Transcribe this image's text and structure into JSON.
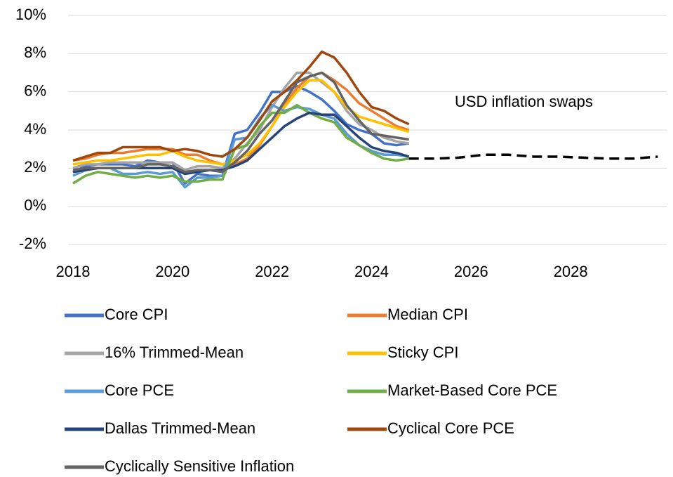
{
  "chart_data": {
    "type": "line",
    "x": [
      2018,
      2018.25,
      2018.5,
      2018.75,
      2019,
      2019.25,
      2019.5,
      2019.75,
      2020,
      2020.25,
      2020.5,
      2020.75,
      2021,
      2021.25,
      2021.5,
      2021.75,
      2022,
      2022.25,
      2022.5,
      2022.75,
      2023,
      2023.25,
      2023.5,
      2023.75,
      2024,
      2024.25,
      2024.5,
      2024.75
    ],
    "series": [
      {
        "name": "Core CPI",
        "color": "#4472c4",
        "values": [
          1.8,
          2.1,
          2.2,
          2.2,
          2.2,
          2.1,
          2.4,
          2.3,
          2.3,
          1.2,
          1.7,
          1.6,
          1.6,
          3.8,
          4.0,
          4.9,
          6.0,
          6.0,
          6.3,
          6.0,
          5.6,
          5.0,
          4.3,
          4.0,
          3.8,
          3.3,
          3.2,
          3.3
        ]
      },
      {
        "name": "Median CPI",
        "color": "#ed7d31",
        "values": [
          2.4,
          2.5,
          2.7,
          2.8,
          2.8,
          2.9,
          3.0,
          3.0,
          3.0,
          2.7,
          2.7,
          2.4,
          2.2,
          2.2,
          2.5,
          3.2,
          4.2,
          5.3,
          6.2,
          6.8,
          7.0,
          6.6,
          6.1,
          5.4,
          5.0,
          4.6,
          4.2,
          4.0
        ]
      },
      {
        "name": "16% Trimmed-Mean",
        "color": "#a5a5a5",
        "values": [
          2.0,
          2.2,
          2.2,
          2.3,
          2.3,
          2.3,
          2.3,
          2.3,
          2.3,
          1.9,
          2.1,
          2.1,
          2.0,
          2.5,
          3.3,
          4.0,
          5.2,
          6.2,
          7.0,
          7.0,
          6.5,
          6.0,
          5.0,
          4.3,
          4.0,
          3.6,
          3.4,
          3.3
        ]
      },
      {
        "name": "Sticky CPI",
        "color": "#ffc000",
        "values": [
          2.2,
          2.3,
          2.4,
          2.4,
          2.5,
          2.6,
          2.7,
          2.7,
          2.9,
          2.6,
          2.4,
          2.3,
          2.2,
          2.4,
          2.7,
          3.3,
          4.2,
          5.2,
          6.0,
          6.6,
          6.6,
          6.0,
          5.2,
          4.7,
          4.5,
          4.3,
          4.1,
          3.9
        ]
      },
      {
        "name": "Core PCE",
        "color": "#5b9bd5",
        "values": [
          1.6,
          1.9,
          2.0,
          2.0,
          1.7,
          1.7,
          1.8,
          1.7,
          1.8,
          1.0,
          1.5,
          1.5,
          1.6,
          3.5,
          3.6,
          4.6,
          5.3,
          5.0,
          5.2,
          5.1,
          4.8,
          4.6,
          3.8,
          3.2,
          2.9,
          2.7,
          2.7,
          2.6
        ]
      },
      {
        "name": "Market-Based Core PCE",
        "color": "#70ad47",
        "values": [
          1.2,
          1.6,
          1.8,
          1.7,
          1.6,
          1.5,
          1.6,
          1.5,
          1.6,
          1.3,
          1.3,
          1.4,
          1.4,
          3.0,
          3.2,
          4.2,
          4.9,
          4.9,
          5.3,
          4.9,
          4.6,
          4.4,
          3.6,
          3.2,
          2.8,
          2.5,
          2.4,
          2.5
        ]
      },
      {
        "name": "Dallas Trimmed-Mean",
        "color": "#264478",
        "values": [
          1.8,
          1.9,
          2.0,
          2.0,
          2.0,
          2.0,
          2.0,
          2.0,
          2.0,
          1.7,
          1.8,
          1.9,
          1.9,
          2.1,
          2.4,
          3.0,
          3.6,
          4.2,
          4.6,
          4.9,
          4.8,
          4.8,
          4.2,
          3.6,
          3.1,
          2.9,
          2.8,
          2.6
        ]
      },
      {
        "name": "Cyclical Core PCE",
        "color": "#9e480e",
        "values": [
          2.4,
          2.6,
          2.8,
          2.8,
          3.1,
          3.1,
          3.1,
          3.1,
          2.9,
          3.0,
          2.9,
          2.7,
          2.6,
          3.0,
          3.6,
          4.5,
          5.5,
          6.0,
          6.6,
          7.3,
          8.1,
          7.8,
          7.0,
          6.0,
          5.2,
          5.0,
          4.6,
          4.3
        ]
      },
      {
        "name": "Cyclically Sensitive Inflation",
        "color": "#636363",
        "values": [
          1.9,
          2.0,
          2.0,
          2.0,
          2.0,
          2.0,
          2.2,
          2.2,
          2.1,
          1.8,
          1.9,
          1.9,
          1.8,
          2.3,
          2.9,
          3.8,
          4.5,
          5.5,
          6.5,
          6.8,
          7.0,
          6.5,
          5.3,
          4.5,
          3.8,
          3.7,
          3.6,
          3.5
        ]
      }
    ],
    "swaps": {
      "label": "USD inflation swaps",
      "color": "#000000",
      "x": [
        2024.75,
        2025.25,
        2025.75,
        2026.25,
        2026.75,
        2027.25,
        2027.75,
        2028.25,
        2028.75,
        2029.25,
        2029.75
      ],
      "values": [
        2.5,
        2.5,
        2.55,
        2.7,
        2.7,
        2.6,
        2.6,
        2.55,
        2.5,
        2.5,
        2.6
      ]
    },
    "xlim": [
      2018,
      2030
    ],
    "xticks": [
      2018,
      2020,
      2022,
      2024,
      2026,
      2028
    ],
    "ylim": [
      -2,
      10
    ],
    "yticks": [
      {
        "value": -2,
        "label": "-2%"
      },
      {
        "value": 0,
        "label": "0%"
      },
      {
        "value": 2,
        "label": "2%"
      },
      {
        "value": 4,
        "label": "4%"
      },
      {
        "value": 6,
        "label": "6%"
      },
      {
        "value": 8,
        "label": "8%"
      },
      {
        "value": 10,
        "label": "10%"
      }
    ],
    "grid": true
  }
}
